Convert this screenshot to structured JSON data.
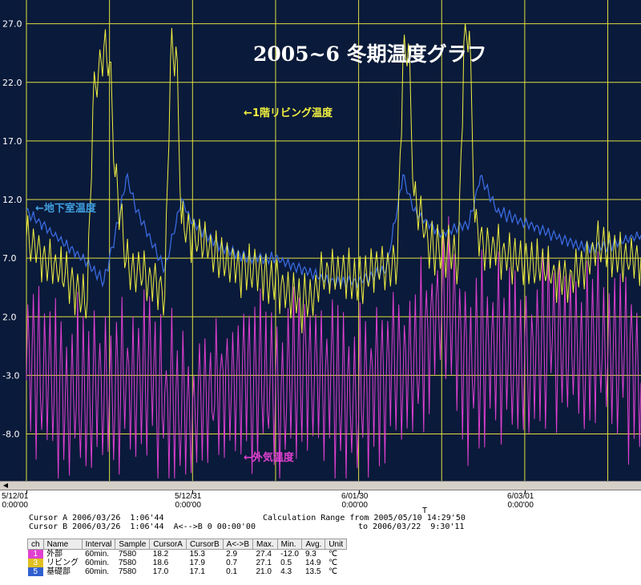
{
  "chart_data": {
    "type": "line",
    "title": "2005~6 冬期温度グラフ",
    "x_ticks": [
      {
        "date": "5/12/01",
        "time": "0:00'00"
      },
      {
        "date": "5/12/31",
        "time": "0:00'00"
      },
      {
        "date": "6/01/30",
        "time": "0:00'00"
      },
      {
        "date": "6/03/01",
        "time": "0:00'00"
      }
    ],
    "y_ticks": [
      "27.0",
      "22.0",
      "17.0",
      "12.0",
      "7.0",
      "2.0",
      "-3.0",
      "-8.0"
    ],
    "y_tick_values": [
      27,
      22,
      17,
      12,
      7,
      2,
      -3,
      -8
    ],
    "ylim": [
      -12,
      28
    ],
    "x_start": "2005-12-01",
    "x_end": "2006-03-22",
    "grid": true,
    "annotations": {
      "living": "←1階リビング温度",
      "basement": "←地下室温度",
      "outside": "←外気温度"
    },
    "series": [
      {
        "name": "外部",
        "color": "#e040d0",
        "days": [
          0,
          5,
          10,
          15,
          20,
          25,
          30,
          35,
          40,
          45,
          50,
          55,
          60,
          65,
          70,
          75,
          80,
          85,
          90,
          95,
          100,
          105,
          111
        ],
        "values": [
          -2,
          -4,
          -5,
          -4,
          -3,
          -5,
          -6,
          -4,
          -3,
          -5,
          -2,
          -4,
          -5,
          -3,
          -2,
          3,
          -2,
          -1,
          -2,
          0,
          -1,
          -1,
          -2
        ]
      },
      {
        "name": "リビング",
        "color": "#f0f040",
        "days": [
          0,
          5,
          8,
          11,
          12,
          14,
          15,
          16,
          18,
          20,
          25,
          26,
          27,
          28,
          30,
          35,
          40,
          45,
          50,
          55,
          60,
          63,
          67,
          68,
          69,
          70,
          73,
          78,
          79,
          80,
          81,
          83,
          88,
          93,
          98,
          103,
          108,
          111
        ],
        "values": [
          9,
          6,
          5,
          3,
          20,
          25,
          24,
          14,
          7,
          6,
          4,
          24,
          25,
          10,
          9,
          7,
          6,
          5,
          3,
          6,
          5,
          6,
          7,
          24,
          25,
          12,
          8,
          7,
          25,
          26,
          10,
          8,
          7,
          6,
          5,
          8,
          7,
          7
        ]
      },
      {
        "name": "基礎部",
        "color": "#3a6ae0",
        "days": [
          0,
          5,
          10,
          14,
          17,
          18,
          20,
          25,
          28,
          30,
          35,
          40,
          45,
          50,
          55,
          60,
          65,
          68,
          70,
          75,
          80,
          82,
          85,
          90,
          95,
          100,
          105,
          111
        ],
        "values": [
          11,
          9,
          7,
          5,
          11,
          14,
          11,
          6,
          12,
          10,
          8,
          7,
          7,
          6,
          5,
          5,
          6,
          14,
          11,
          9,
          10,
          14,
          11,
          10,
          9,
          8,
          8,
          9
        ]
      }
    ]
  },
  "cursor_info": {
    "cursor_a": "Cursor A 2006/03/26  1:06'44",
    "cursor_b": "Cursor B 2006/03/26  1:06'44  A<-->B 0 00:00'00",
    "range_from": "Calculation Range from 2005/05/10 14:29'50",
    "range_to": "to 2006/03/22  9:30'11",
    "marker": "T"
  },
  "table": {
    "headers": [
      "ch",
      "Name",
      "Interval",
      "Sample",
      "CursorA",
      "CursorB",
      "A<->B",
      "Max.",
      "Min.",
      "Avg.",
      "Unit"
    ],
    "rows": [
      {
        "ch": "1",
        "color": "#e040d0",
        "name": "外部",
        "interval": "60min.",
        "sample": "7580",
        "cursor_a": "18.2",
        "cursor_b": "15.3",
        "ab": "2.9",
        "max": "27.4",
        "min": "-12.0",
        "avg": "9.3",
        "unit": "℃"
      },
      {
        "ch": "3",
        "color": "#e0c020",
        "name": "リビング",
        "interval": "60min.",
        "sample": "7580",
        "cursor_a": "18.6",
        "cursor_b": "17.9",
        "ab": "0.7",
        "max": "27.1",
        "min": "0.5",
        "avg": "14.9",
        "unit": "℃"
      },
      {
        "ch": "5",
        "color": "#3060d0",
        "name": "基礎部",
        "interval": "60min.",
        "sample": "7580",
        "cursor_a": "17.0",
        "cursor_b": "17.1",
        "ab": "0.1",
        "max": "21.0",
        "min": "4.3",
        "avg": "13.5",
        "unit": "℃"
      }
    ]
  }
}
